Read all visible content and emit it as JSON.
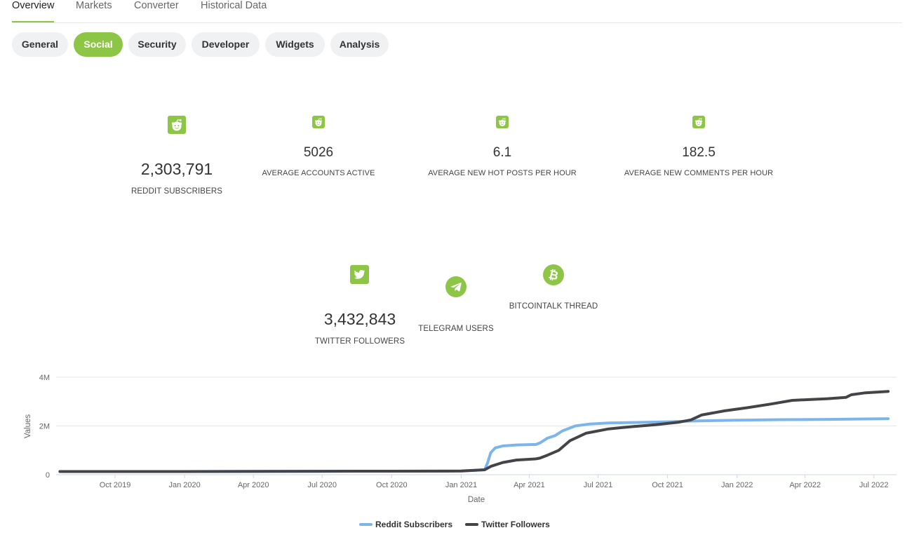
{
  "top_tabs": [
    {
      "label": "Overview",
      "active": true
    },
    {
      "label": "Markets",
      "active": false
    },
    {
      "label": "Converter",
      "active": false
    },
    {
      "label": "Historical Data",
      "active": false
    }
  ],
  "sub_tabs": [
    {
      "label": "General",
      "active": false
    },
    {
      "label": "Social",
      "active": true
    },
    {
      "label": "Security",
      "active": false
    },
    {
      "label": "Developer",
      "active": false
    },
    {
      "label": "Widgets",
      "active": false
    },
    {
      "label": "Analysis",
      "active": false
    }
  ],
  "reddit_stats": {
    "subscribers": {
      "value": "2,303,791",
      "label": "REDDIT SUBSCRIBERS",
      "icon": "reddit-icon"
    },
    "accounts_active": {
      "value": "5026",
      "label": "AVERAGE ACCOUNTS ACTIVE",
      "icon": "reddit-icon"
    },
    "hot_posts": {
      "value": "6.1",
      "label": "AVERAGE NEW HOT POSTS PER HOUR",
      "icon": "reddit-icon"
    },
    "comments": {
      "value": "182.5",
      "label": "AVERAGE NEW COMMENTS PER HOUR",
      "icon": "reddit-icon"
    }
  },
  "other_stats": {
    "twitter": {
      "value": "3,432,843",
      "label": "TWITTER FOLLOWERS",
      "icon": "twitter-icon"
    },
    "telegram": {
      "label": "TELEGRAM USERS",
      "icon": "telegram-icon"
    },
    "bitcointalk": {
      "label": "BITCOINTALK THREAD",
      "icon": "bitcoin-icon"
    }
  },
  "colors": {
    "accent": "#8dc647",
    "reddit_series": "#7cb5ec",
    "twitter_series": "#434348"
  },
  "chart_data": {
    "type": "line",
    "xlabel": "Date",
    "ylabel": "Values",
    "x_ticks": [
      "Oct 2019",
      "Jan 2020",
      "Apr 2020",
      "Jul 2020",
      "Oct 2020",
      "Jan 2021",
      "Apr 2021",
      "Jul 2021",
      "Oct 2021",
      "Jan 2022",
      "Apr 2022",
      "Jul 2022"
    ],
    "y_ticks": [
      "0",
      "2M",
      "4M"
    ],
    "xlim": [
      "2019-07-15",
      "2022-07-31"
    ],
    "ylim": [
      0,
      4000000
    ],
    "grid": true,
    "legend_position": "bottom",
    "series": [
      {
        "name": "Reddit Subscribers",
        "points": [
          [
            "2019-07-20",
            130000
          ],
          [
            "2020-01-01",
            130000
          ],
          [
            "2020-07-01",
            140000
          ],
          [
            "2020-10-01",
            145000
          ],
          [
            "2021-01-01",
            150000
          ],
          [
            "2021-02-01",
            200000
          ],
          [
            "2021-02-05",
            500000
          ],
          [
            "2021-02-09",
            900000
          ],
          [
            "2021-02-15",
            1100000
          ],
          [
            "2021-02-25",
            1180000
          ],
          [
            "2021-03-15",
            1220000
          ],
          [
            "2021-04-10",
            1240000
          ],
          [
            "2021-04-15",
            1300000
          ],
          [
            "2021-04-25",
            1500000
          ],
          [
            "2021-05-05",
            1600000
          ],
          [
            "2021-05-15",
            1800000
          ],
          [
            "2021-06-01",
            2000000
          ],
          [
            "2021-06-20",
            2080000
          ],
          [
            "2021-07-15",
            2120000
          ],
          [
            "2021-08-15",
            2140000
          ],
          [
            "2021-10-01",
            2170000
          ],
          [
            "2021-11-01",
            2200000
          ],
          [
            "2022-01-01",
            2240000
          ],
          [
            "2022-03-01",
            2260000
          ],
          [
            "2022-05-01",
            2270000
          ],
          [
            "2022-07-20",
            2300000
          ]
        ]
      },
      {
        "name": "Twitter Followers",
        "points": [
          [
            "2019-07-20",
            130000
          ],
          [
            "2020-01-01",
            130000
          ],
          [
            "2020-07-01",
            140000
          ],
          [
            "2020-10-01",
            145000
          ],
          [
            "2021-01-01",
            150000
          ],
          [
            "2021-02-01",
            200000
          ],
          [
            "2021-02-10",
            350000
          ],
          [
            "2021-02-25",
            500000
          ],
          [
            "2021-03-15",
            600000
          ],
          [
            "2021-04-10",
            650000
          ],
          [
            "2021-04-15",
            680000
          ],
          [
            "2021-04-25",
            800000
          ],
          [
            "2021-05-10",
            1000000
          ],
          [
            "2021-05-25",
            1400000
          ],
          [
            "2021-06-15",
            1700000
          ],
          [
            "2021-07-15",
            1880000
          ],
          [
            "2021-08-15",
            1970000
          ],
          [
            "2021-09-15",
            2050000
          ],
          [
            "2021-10-15",
            2150000
          ],
          [
            "2021-11-01",
            2250000
          ],
          [
            "2021-11-15",
            2450000
          ],
          [
            "2021-12-15",
            2620000
          ],
          [
            "2022-01-15",
            2750000
          ],
          [
            "2022-02-15",
            2900000
          ],
          [
            "2022-03-15",
            3050000
          ],
          [
            "2022-05-01",
            3120000
          ],
          [
            "2022-05-25",
            3170000
          ],
          [
            "2022-06-01",
            3280000
          ],
          [
            "2022-06-20",
            3360000
          ],
          [
            "2022-07-20",
            3420000
          ]
        ]
      }
    ]
  }
}
